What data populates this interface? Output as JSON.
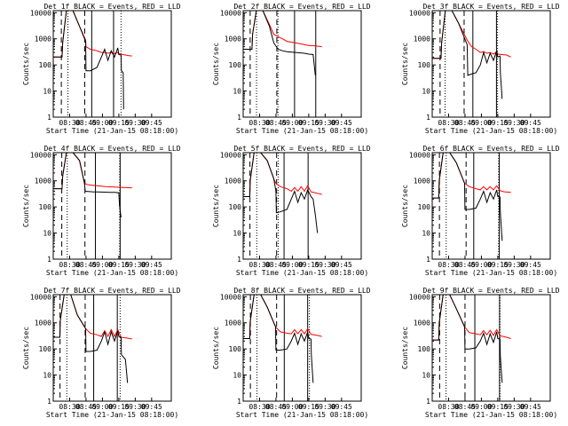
{
  "x_ticks": [
    "08:30",
    "08:45",
    "09:00",
    "09:15",
    "09:30",
    "09:45"
  ],
  "y_ticks": [
    "1",
    "10",
    "100",
    "1000",
    "10000"
  ],
  "ylabel": "Counts/sec",
  "xlabel": "Start Time (21-Jan-15 08:18:00)",
  "chart_data": [
    {
      "type": "line",
      "title": "Det 1f BLACK = Events, RED = LLD",
      "yscale": "log",
      "ylim": [
        1,
        12000
      ],
      "x_range_min": [
        0,
        36
      ],
      "series": [
        {
          "name": "Events",
          "color": "#000000",
          "x": [
            0,
            4,
            4.3,
            6,
            9,
            12,
            14.8,
            15,
            17,
            20,
            22,
            23.5,
            25,
            26.5,
            28,
            29.5,
            30,
            31,
            31.2,
            32,
            32.2
          ],
          "y": [
            200,
            200,
            700,
            12000,
            12000,
            3000,
            800,
            60,
            60,
            80,
            200,
            400,
            150,
            350,
            200,
            450,
            250,
            240,
            60,
            50,
            2
          ]
        },
        {
          "name": "LLD",
          "color": "#ff0000",
          "x": [
            0,
            4,
            4.3,
            6,
            9,
            12,
            14.8,
            15,
            17,
            20,
            22,
            23.5,
            25,
            26.5,
            28,
            29.5,
            30,
            32,
            34,
            36
          ],
          "y": [
            200,
            200,
            700,
            12000,
            12000,
            3000,
            900,
            500,
            400,
            350,
            300,
            300,
            280,
            300,
            270,
            300,
            270,
            250,
            230,
            220
          ]
        }
      ],
      "vlines_dashed": [
        3.7,
        14.4
      ],
      "vlines_dotted": [
        6.7,
        31
      ],
      "vlines_solid": [
        17.6,
        27.6
      ]
    },
    {
      "type": "line",
      "title": "Det 2f BLACK = Events, RED = LLD",
      "yscale": "log",
      "ylim": [
        1,
        12000
      ],
      "x_range_min": [
        0,
        36
      ],
      "series": [
        {
          "name": "Events",
          "color": "#000000",
          "x": [
            0,
            4,
            4.3,
            6,
            9,
            12,
            14,
            16,
            18,
            20,
            24,
            28,
            30,
            32,
            33
          ],
          "y": [
            400,
            400,
            1500,
            12000,
            12000,
            3000,
            700,
            400,
            350,
            320,
            300,
            280,
            260,
            250,
            40
          ]
        },
        {
          "name": "LLD",
          "color": "#ff0000",
          "x": [
            0,
            4,
            4.3,
            6,
            9,
            12,
            14,
            16,
            18,
            20,
            24,
            28,
            30,
            32,
            36
          ],
          "y": [
            400,
            400,
            1500,
            12000,
            12000,
            3500,
            1500,
            1200,
            1000,
            800,
            700,
            600,
            550,
            550,
            500
          ]
        }
      ],
      "vlines_dashed": [
        3.2,
        15.4
      ],
      "vlines_dotted": [
        6.1,
        15.9
      ],
      "vlines_solid": [
        23.5,
        33.2
      ]
    },
    {
      "type": "line",
      "title": "Det 3f BLACK = Events, RED = LLD",
      "yscale": "log",
      "ylim": [
        1,
        12000
      ],
      "x_range_min": [
        0,
        36
      ],
      "series": [
        {
          "name": "Events",
          "color": "#000000",
          "x": [
            0,
            4,
            4.3,
            6,
            9,
            12,
            16,
            16.3,
            18,
            20,
            22,
            23.5,
            25,
            26.5,
            28,
            29.5,
            30,
            31,
            31.2,
            32
          ],
          "y": [
            180,
            180,
            700,
            12000,
            12000,
            4000,
            600,
            40,
            45,
            50,
            100,
            300,
            120,
            280,
            150,
            350,
            200,
            220,
            50,
            5
          ]
        },
        {
          "name": "LLD",
          "color": "#ff0000",
          "x": [
            0,
            4,
            4.3,
            6,
            9,
            12,
            16,
            18,
            20,
            22,
            23.5,
            25,
            26.5,
            28,
            29.5,
            30,
            32,
            34,
            36
          ],
          "y": [
            180,
            180,
            700,
            12000,
            12000,
            4000,
            900,
            500,
            400,
            300,
            320,
            280,
            300,
            260,
            320,
            260,
            250,
            240,
            200
          ]
        }
      ],
      "vlines_dashed": [
        3.6,
        14.6
      ],
      "vlines_dotted": [
        5.9,
        29.9
      ],
      "vlines_solid": [
        18.6,
        29.4
      ]
    },
    {
      "type": "line",
      "title": "Det 4f BLACK = Events, RED = LLD",
      "yscale": "log",
      "ylim": [
        1,
        12000
      ],
      "x_range_min": [
        0,
        36
      ],
      "series": [
        {
          "name": "Events",
          "color": "#000000",
          "x": [
            0,
            4,
            4.3,
            6,
            9,
            12,
            14.3,
            14.6,
            18,
            22,
            26,
            28,
            30,
            30.3,
            31
          ],
          "y": [
            500,
            500,
            1500,
            12000,
            12000,
            6000,
            800,
            400,
            380,
            370,
            360,
            360,
            350,
            120,
            40
          ]
        },
        {
          "name": "LLD",
          "color": "#ff0000",
          "x": [
            0,
            4,
            4.3,
            6,
            9,
            12,
            14.3,
            16,
            20,
            24,
            28,
            32,
            36
          ],
          "y": [
            500,
            500,
            1500,
            12000,
            12000,
            6000,
            800,
            700,
            650,
            600,
            580,
            560,
            540
          ]
        }
      ],
      "vlines_dashed": [
        3.9,
        14.5
      ],
      "vlines_dotted": [
        6.4,
        30.4
      ],
      "vlines_solid": [
        19.3,
        30.6
      ]
    },
    {
      "type": "line",
      "title": "Det 5f BLACK = Events, RED = LLD",
      "yscale": "log",
      "ylim": [
        1,
        12000
      ],
      "x_range_min": [
        0,
        36
      ],
      "series": [
        {
          "name": "Events",
          "color": "#000000",
          "x": [
            0,
            3,
            3.2,
            5,
            8,
            11,
            14,
            15,
            15.2,
            17,
            20,
            22,
            23.5,
            25,
            26.5,
            28,
            29.5,
            31,
            32,
            33,
            34
          ],
          "y": [
            250,
            250,
            1000,
            12000,
            12000,
            6000,
            1200,
            400,
            60,
            65,
            80,
            200,
            400,
            150,
            350,
            200,
            450,
            250,
            200,
            50,
            10
          ]
        },
        {
          "name": "LLD",
          "color": "#ff0000",
          "x": [
            0,
            3,
            3.2,
            5,
            8,
            11,
            14,
            15,
            17,
            20,
            22,
            23.5,
            25,
            26.5,
            28,
            29.5,
            31,
            33,
            36
          ],
          "y": [
            250,
            250,
            1000,
            12000,
            12000,
            6000,
            1200,
            800,
            600,
            500,
            400,
            550,
            400,
            600,
            400,
            650,
            380,
            350,
            300
          ]
        }
      ],
      "vlines_dashed": [
        3.1,
        15.3
      ],
      "vlines_dotted": [
        6.2,
        16
      ],
      "vlines_solid": [
        18.7,
        29.7
      ]
    },
    {
      "type": "line",
      "title": "Det 6f BLACK = Events, RED = LLD",
      "yscale": "log",
      "ylim": [
        1,
        12000
      ],
      "x_range_min": [
        0,
        36
      ],
      "series": [
        {
          "name": "Events",
          "color": "#000000",
          "x": [
            0,
            3,
            3.2,
            5,
            8,
            11,
            14.8,
            15,
            17,
            20,
            22,
            23.5,
            25,
            26.5,
            28,
            29.5,
            30,
            31,
            31.2,
            32
          ],
          "y": [
            220,
            220,
            1000,
            12000,
            12000,
            5000,
            800,
            80,
            80,
            90,
            200,
            400,
            150,
            350,
            200,
            450,
            250,
            240,
            60,
            5
          ]
        },
        {
          "name": "LLD",
          "color": "#ff0000",
          "x": [
            0,
            3,
            3.2,
            5,
            8,
            11,
            14.8,
            17,
            20,
            22,
            23.5,
            25,
            26.5,
            28,
            29.5,
            31,
            33,
            36
          ],
          "y": [
            220,
            220,
            1000,
            12000,
            12000,
            5000,
            800,
            600,
            500,
            450,
            600,
            450,
            600,
            450,
            650,
            420,
            380,
            360
          ]
        }
      ],
      "vlines_dashed": [
        3.3,
        15.5
      ],
      "vlines_dotted": [
        6.4,
        30.4
      ],
      "vlines_solid": [
        19,
        30.7
      ]
    },
    {
      "type": "line",
      "title": "Det 7f BLACK = Events, RED = LLD",
      "yscale": "log",
      "ylim": [
        1,
        12000
      ],
      "x_range_min": [
        0,
        36
      ],
      "series": [
        {
          "name": "Events",
          "color": "#000000",
          "x": [
            0,
            3,
            3.2,
            5,
            8,
            11,
            14.8,
            15,
            17,
            20,
            22,
            23.5,
            25,
            26.5,
            28,
            29.5,
            30,
            31,
            31.2,
            32,
            33,
            34
          ],
          "y": [
            280,
            280,
            1200,
            12000,
            12000,
            2000,
            600,
            80,
            80,
            90,
            200,
            450,
            150,
            450,
            200,
            500,
            300,
            280,
            60,
            50,
            40,
            5
          ]
        },
        {
          "name": "LLD",
          "color": "#ff0000",
          "x": [
            0,
            3,
            3.2,
            5,
            8,
            11,
            14.8,
            17,
            20,
            22,
            23.5,
            25,
            26.5,
            28,
            29.5,
            31,
            34,
            36
          ],
          "y": [
            280,
            280,
            1200,
            12000,
            12000,
            2000,
            600,
            400,
            350,
            300,
            500,
            300,
            550,
            300,
            550,
            280,
            260,
            240
          ]
        }
      ],
      "vlines_dashed": [
        3.1,
        14.6
      ],
      "vlines_dotted": [
        6.2,
        30.6
      ],
      "vlines_solid": [
        18.5,
        29.3
      ]
    },
    {
      "type": "line",
      "title": "Det 8f BLACK = Events, RED = LLD",
      "yscale": "log",
      "ylim": [
        1,
        12000
      ],
      "x_range_min": [
        0,
        36
      ],
      "series": [
        {
          "name": "Events",
          "color": "#000000",
          "x": [
            0,
            3,
            3.2,
            5,
            8,
            11,
            14.8,
            15,
            17,
            20,
            22,
            23.5,
            25,
            26.5,
            28,
            29.5,
            30,
            31,
            31.2,
            32
          ],
          "y": [
            250,
            250,
            1100,
            12000,
            12000,
            4000,
            700,
            90,
            90,
            100,
            200,
            400,
            150,
            380,
            200,
            450,
            250,
            240,
            60,
            5
          ]
        },
        {
          "name": "LLD",
          "color": "#ff0000",
          "x": [
            0,
            3,
            3.2,
            5,
            8,
            11,
            14.8,
            17,
            20,
            22,
            23.5,
            25,
            26.5,
            28,
            29.5,
            31,
            34,
            36
          ],
          "y": [
            250,
            250,
            1100,
            12000,
            12000,
            4000,
            700,
            450,
            400,
            380,
            550,
            380,
            550,
            380,
            600,
            360,
            330,
            300
          ]
        }
      ],
      "vlines_dashed": [
        3.3,
        15.3
      ],
      "vlines_dotted": [
        6.3,
        30.3
      ],
      "vlines_solid": [
        18.8,
        29.5
      ]
    },
    {
      "type": "line",
      "title": "Det 9f BLACK = Events, RED = LLD",
      "yscale": "log",
      "ylim": [
        1,
        12000
      ],
      "x_range_min": [
        0,
        36
      ],
      "series": [
        {
          "name": "Events",
          "color": "#000000",
          "x": [
            0,
            3,
            3.2,
            5,
            8,
            11,
            14.8,
            15,
            17,
            20,
            22,
            23.5,
            25,
            26.5,
            28,
            29.5,
            30,
            31,
            31.2,
            32
          ],
          "y": [
            220,
            220,
            1000,
            12000,
            12000,
            3500,
            700,
            100,
            100,
            110,
            200,
            400,
            150,
            380,
            180,
            450,
            250,
            240,
            50,
            5
          ]
        },
        {
          "name": "LLD",
          "color": "#ff0000",
          "x": [
            0,
            3,
            3.2,
            5,
            8,
            11,
            14.8,
            17,
            20,
            22,
            23.5,
            25,
            26.5,
            28,
            29.5,
            31,
            34,
            36
          ],
          "y": [
            220,
            220,
            1000,
            12000,
            12000,
            3500,
            700,
            420,
            380,
            350,
            500,
            350,
            520,
            330,
            550,
            320,
            280,
            250
          ]
        }
      ],
      "vlines_dashed": [
        3.4,
        15
      ],
      "vlines_dotted": [
        6.3,
        31
      ],
      "vlines_solid": [
        19.5,
        30.8
      ]
    }
  ]
}
